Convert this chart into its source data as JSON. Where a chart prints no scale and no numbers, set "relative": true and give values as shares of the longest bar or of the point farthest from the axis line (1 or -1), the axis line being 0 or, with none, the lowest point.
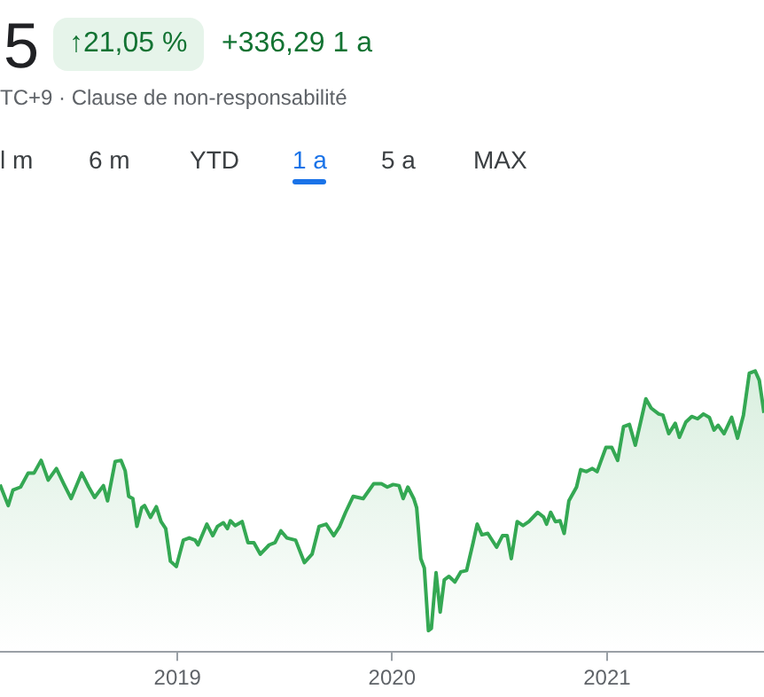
{
  "chart_data": {
    "type": "area",
    "title": "5",
    "subtitle": "TC+9 · Clause de non-responsabilité",
    "annotations": [
      "↑21,05 %",
      "+336,29 1 a",
      "l m",
      "6 m",
      "YTD",
      "1 a",
      "5 a",
      "MAX"
    ],
    "relative": true,
    "legend": false,
    "marker": "none",
    "line_style": "solid",
    "xlim": [
      "2018-03-05",
      "2021-09-25"
    ],
    "xticks": [
      {
        "value": "2019-01-01",
        "label": "2019"
      },
      {
        "value": "2020-01-01",
        "label": "2020"
      },
      {
        "value": "2021-01-01",
        "label": "2021"
      }
    ],
    "x": [
      "2018-03-05",
      "2018-03-19",
      "2018-03-27",
      "2018-04-09",
      "2018-04-22",
      "2018-05-02",
      "2018-05-14",
      "2018-05-26",
      "2018-06-09",
      "2018-06-22",
      "2018-07-04",
      "2018-07-22",
      "2018-08-03",
      "2018-08-13",
      "2018-08-28",
      "2018-09-04",
      "2018-09-17",
      "2018-09-27",
      "2018-10-04",
      "2018-10-10",
      "2018-10-17",
      "2018-10-24",
      "2018-11-01",
      "2018-11-06",
      "2018-11-16",
      "2018-11-26",
      "2018-12-04",
      "2018-12-12",
      "2018-12-20",
      "2018-12-30",
      "2019-01-11",
      "2019-01-21",
      "2019-01-31",
      "2019-02-05",
      "2019-02-20",
      "2019-03-02",
      "2019-03-10",
      "2019-03-20",
      "2019-03-27",
      "2019-04-01",
      "2019-04-09",
      "2019-04-21",
      "2019-05-01",
      "2019-05-11",
      "2019-05-22",
      "2019-06-06",
      "2019-06-16",
      "2019-06-26",
      "2019-07-06",
      "2019-07-21",
      "2019-08-05",
      "2019-08-18",
      "2019-08-30",
      "2019-09-11",
      "2019-09-24",
      "2019-10-04",
      "2019-10-14",
      "2019-10-27",
      "2019-11-13",
      "2019-12-01",
      "2019-12-14",
      "2019-12-24",
      "2020-01-03",
      "2020-01-13",
      "2020-01-20",
      "2020-01-28",
      "2020-02-07",
      "2020-02-12",
      "2020-02-19",
      "2020-02-25",
      "2020-03-03",
      "2020-03-08",
      "2020-03-16",
      "2020-03-23",
      "2020-03-30",
      "2020-04-07",
      "2020-04-17",
      "2020-04-27",
      "2020-05-07",
      "2020-05-18",
      "2020-05-25",
      "2020-06-02",
      "2020-06-12",
      "2020-06-27",
      "2020-07-07",
      "2020-07-15",
      "2020-07-22",
      "2020-08-01",
      "2020-08-11",
      "2020-08-21",
      "2020-09-05",
      "2020-09-15",
      "2020-09-20",
      "2020-09-27",
      "2020-10-05",
      "2020-10-13",
      "2020-10-20",
      "2020-10-28",
      "2020-11-10",
      "2020-11-17",
      "2020-11-27",
      "2020-12-07",
      "2020-12-15",
      "2020-12-30",
      "2021-01-09",
      "2021-01-19",
      "2021-01-29",
      "2021-02-08",
      "2021-02-18",
      "2021-02-28",
      "2021-03-08",
      "2021-03-17",
      "2021-03-30",
      "2021-04-06",
      "2021-04-16",
      "2021-04-27",
      "2021-05-04",
      "2021-05-15",
      "2021-05-25",
      "2021-06-04",
      "2021-06-14",
      "2021-06-24",
      "2021-07-02",
      "2021-07-09",
      "2021-07-19",
      "2021-08-01",
      "2021-08-11",
      "2021-08-21",
      "2021-08-31",
      "2021-09-10",
      "2021-09-17",
      "2021-09-25"
    ],
    "series": [
      {
        "color": "#34a853",
        "values": [
          0.596,
          0.521,
          0.576,
          0.587,
          0.637,
          0.637,
          0.682,
          0.612,
          0.653,
          0.596,
          0.546,
          0.637,
          0.587,
          0.55,
          0.592,
          0.538,
          0.678,
          0.682,
          0.645,
          0.554,
          0.546,
          0.447,
          0.513,
          0.521,
          0.479,
          0.517,
          0.464,
          0.439,
          0.323,
          0.304,
          0.398,
          0.406,
          0.398,
          0.381,
          0.455,
          0.414,
          0.447,
          0.46,
          0.439,
          0.467,
          0.45,
          0.464,
          0.389,
          0.389,
          0.348,
          0.381,
          0.389,
          0.431,
          0.406,
          0.398,
          0.318,
          0.348,
          0.447,
          0.455,
          0.414,
          0.447,
          0.497,
          0.554,
          0.546,
          0.599,
          0.599,
          0.587,
          0.596,
          0.592,
          0.546,
          0.587,
          0.546,
          0.513,
          0.332,
          0.299,
          0.076,
          0.084,
          0.282,
          0.142,
          0.257,
          0.269,
          0.249,
          0.285,
          0.29,
          0.389,
          0.455,
          0.417,
          0.422,
          0.373,
          0.414,
          0.414,
          0.332,
          0.464,
          0.45,
          0.464,
          0.497,
          0.48,
          0.455,
          0.497,
          0.464,
          0.467,
          0.422,
          0.538,
          0.587,
          0.649,
          0.642,
          0.653,
          0.642,
          0.728,
          0.728,
          0.682,
          0.802,
          0.81,
          0.736,
          0.827,
          0.901,
          0.868,
          0.847,
          0.843,
          0.777,
          0.814,
          0.764,
          0.818,
          0.838,
          0.83,
          0.847,
          0.835,
          0.79,
          0.807,
          0.777,
          0.835,
          0.761,
          0.843,
          0.992,
          1,
          0.967,
          0.851
        ]
      }
    ]
  }
}
